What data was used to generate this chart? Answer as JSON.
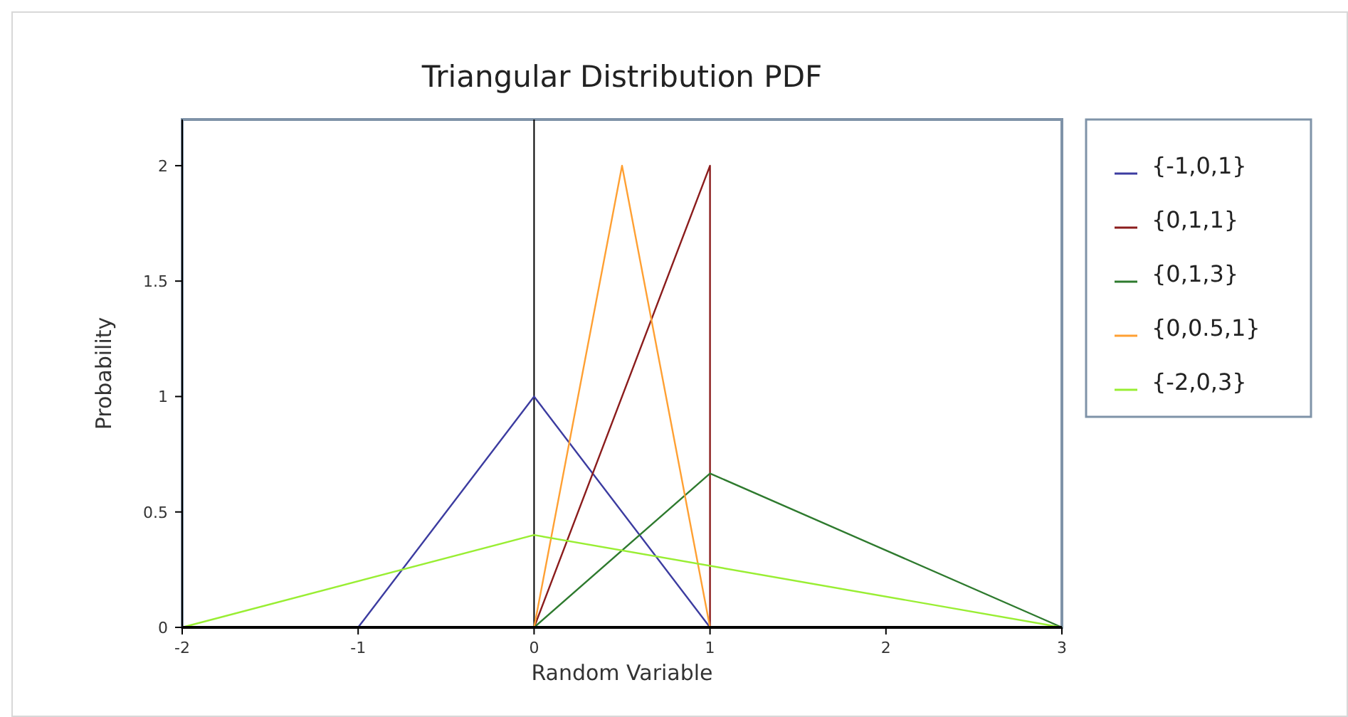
{
  "chart_data": {
    "type": "line",
    "title": "Triangular Distribution PDF",
    "xlabel": "Random Variable",
    "ylabel": "Probability",
    "xlim": [
      -2,
      3
    ],
    "xticks": [
      -2,
      -1,
      0,
      1,
      2,
      3
    ],
    "ylim": [
      0,
      2.2
    ],
    "yticks": [
      0,
      0.5,
      1,
      1.5,
      2
    ],
    "series": [
      {
        "name": "{-1,0,1}",
        "color": "#3c3ca0",
        "x": [
          -1,
          0,
          1
        ],
        "values": [
          0,
          1,
          0
        ]
      },
      {
        "name": "{0,1,1}",
        "color": "#8b1c1c",
        "x": [
          0,
          1,
          1
        ],
        "values": [
          0,
          2,
          0
        ]
      },
      {
        "name": "{0,1,3}",
        "color": "#2e7a2e",
        "x": [
          0,
          1,
          3
        ],
        "values": [
          0,
          0.667,
          0
        ]
      },
      {
        "name": "{0,0.5,1}",
        "color": "#ffa033",
        "x": [
          0,
          0.5,
          1
        ],
        "values": [
          0,
          2,
          0
        ]
      },
      {
        "name": "{-2,0,3}",
        "color": "#99ee33",
        "x": [
          -2,
          0,
          3
        ],
        "values": [
          0,
          0.4,
          0
        ]
      }
    ],
    "ref_lines": [
      {
        "axis": "x",
        "value": 0,
        "color": "#000000"
      }
    ],
    "grid": false,
    "legend": "right",
    "marker": "none",
    "line_style": "solid"
  }
}
